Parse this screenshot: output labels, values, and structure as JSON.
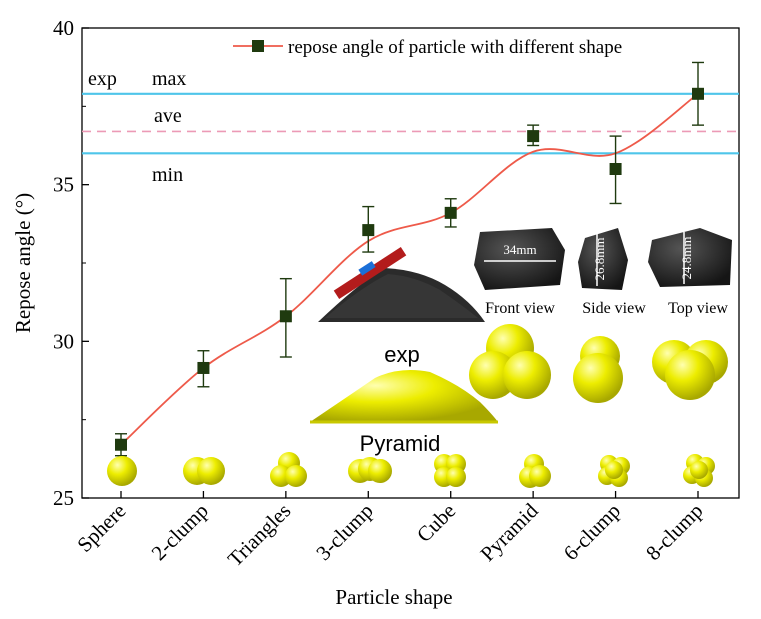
{
  "chart_data": {
    "type": "line",
    "title": "",
    "xlabel": "Particle shape",
    "ylabel": "Repose angle (°)",
    "ylim": [
      25,
      40
    ],
    "yticks": [
      25,
      30,
      35,
      40
    ],
    "categories": [
      "Sphere",
      "2-clump",
      "Triangles",
      "3-clump",
      "Cube",
      "Pyramid",
      "6-clump",
      "8-clump"
    ],
    "series": [
      {
        "name": "repose angle of particle with different shape",
        "values": [
          26.7,
          29.15,
          30.8,
          33.55,
          34.1,
          36.55,
          35.5,
          37.9
        ],
        "err_low": [
          0.35,
          0.6,
          1.3,
          0.7,
          0.45,
          0.3,
          1.1,
          1.0
        ],
        "err_high": [
          0.35,
          0.55,
          1.2,
          0.75,
          0.45,
          0.35,
          1.05,
          1.0
        ],
        "line_color": "#ee5a4a",
        "marker_color": "#1f3a0f"
      }
    ],
    "reference_lines": [
      {
        "label": "max",
        "value": 37.9,
        "style": "solid",
        "color": "#4ec5ea"
      },
      {
        "label": "ave",
        "value": 36.7,
        "style": "dashed",
        "color": "#ec9ab6"
      },
      {
        "label": "min",
        "value": 36.0,
        "style": "solid",
        "color": "#4ec5ea"
      }
    ],
    "exp_label": "exp",
    "legend_position": "top-right"
  },
  "annotations": {
    "exp_pile": "exp",
    "pyramid_pile": "Pyramid",
    "front_dim": "34mm",
    "side_dim": "26.8mm",
    "top_dim": "24.8mm",
    "front_view": "Front view",
    "side_view": "Side view",
    "top_view": "Top view"
  },
  "colors": {
    "particle": "#e6e600",
    "rock": "#2a2a2a"
  }
}
